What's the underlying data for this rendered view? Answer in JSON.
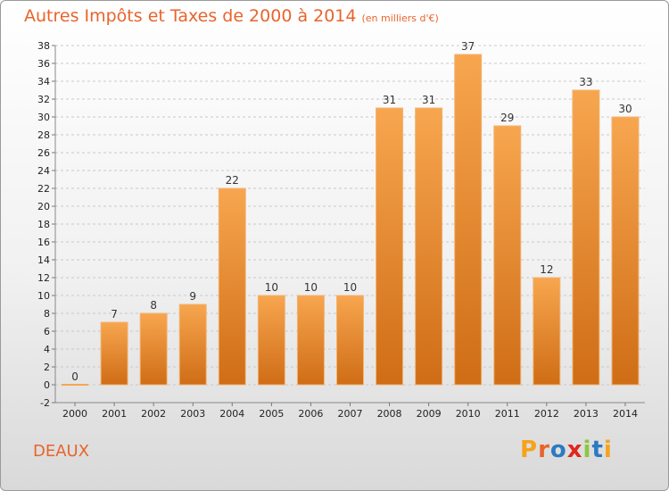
{
  "header": {
    "title": "Autres Impôts et Taxes de 2000 à 2014",
    "unit": "(en milliers d'€)"
  },
  "footer": {
    "commune": "DEAUX",
    "brand": "Proxiti",
    "brand_colors": [
      "#f7a21b",
      "#e8642c",
      "#2c7ac2",
      "#e0261f",
      "#8cc63f",
      "#2c7ac2",
      "#f7a21b"
    ]
  },
  "colors": {
    "title": "#e8642c",
    "bar_light": "#f7a64f",
    "bar_dark": "#cf6d16",
    "bar_edge": "#f2b474",
    "zero_bar": "#f7a64f"
  },
  "chart_data": {
    "type": "bar",
    "categories": [
      "2000",
      "2001",
      "2002",
      "2003",
      "2004",
      "2005",
      "2006",
      "2007",
      "2008",
      "2009",
      "2010",
      "2011",
      "2012",
      "2013",
      "2014"
    ],
    "values": [
      0,
      7,
      8,
      9,
      22,
      10,
      10,
      10,
      31,
      31,
      37,
      29,
      12,
      33,
      30
    ],
    "ylim": [
      -2,
      38
    ],
    "yticks": [
      -2,
      0,
      2,
      4,
      6,
      8,
      10,
      12,
      14,
      16,
      18,
      20,
      22,
      24,
      26,
      28,
      30,
      32,
      34,
      36,
      38
    ],
    "grid": true,
    "data_labels": true
  }
}
